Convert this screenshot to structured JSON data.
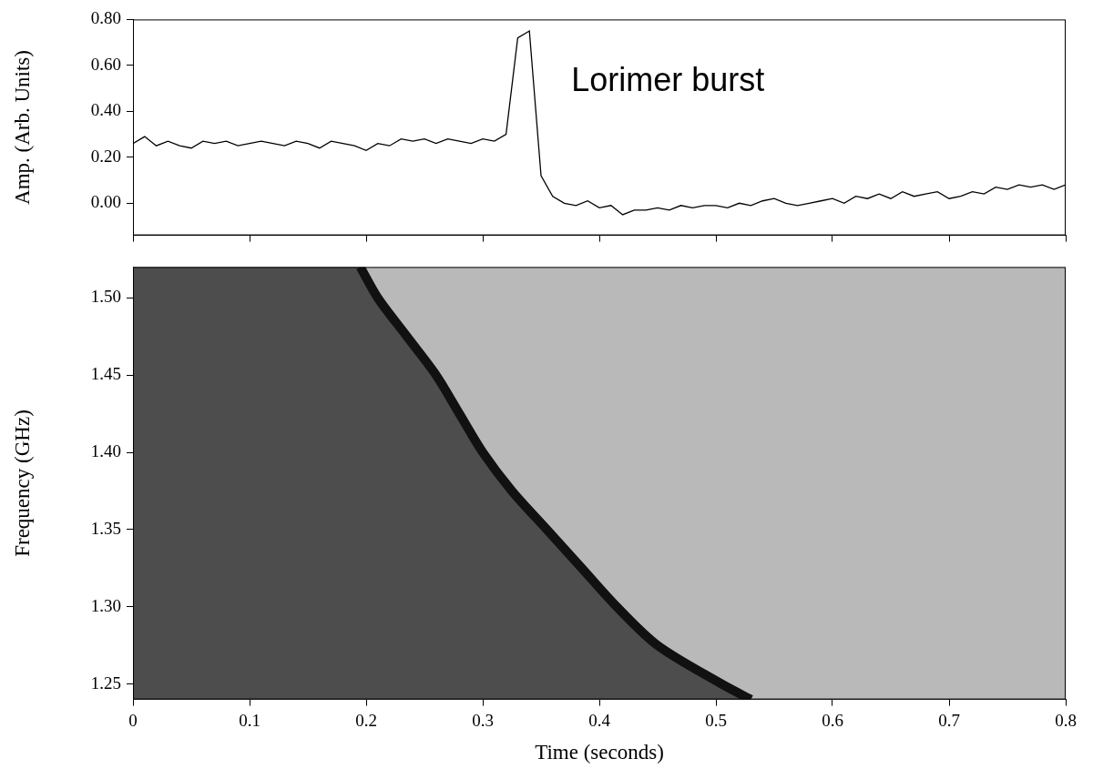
{
  "chart_data": [
    {
      "type": "line",
      "ylabel": "Amp. (Arb. Units)",
      "annotation": "Lorimer burst",
      "color": "#000000",
      "grid": false,
      "tick_labels": "y",
      "x": [
        0,
        0.01,
        0.02,
        0.03,
        0.04,
        0.05,
        0.06,
        0.07,
        0.08,
        0.09,
        0.1,
        0.11,
        0.12,
        0.13,
        0.14,
        0.15,
        0.16,
        0.17,
        0.18,
        0.19,
        0.2,
        0.21,
        0.22,
        0.23,
        0.24,
        0.25,
        0.26,
        0.27,
        0.28,
        0.29,
        0.3,
        0.31,
        0.32,
        0.33,
        0.34,
        0.35,
        0.36,
        0.37,
        0.38,
        0.39,
        0.4,
        0.41,
        0.42,
        0.43,
        0.44,
        0.45,
        0.46,
        0.47,
        0.48,
        0.49,
        0.5,
        0.51,
        0.52,
        0.53,
        0.54,
        0.55,
        0.56,
        0.57,
        0.58,
        0.59,
        0.6,
        0.61,
        0.62,
        0.63,
        0.64,
        0.65,
        0.66,
        0.67,
        0.68,
        0.69,
        0.7,
        0.71,
        0.72,
        0.73,
        0.74,
        0.75,
        0.76,
        0.77,
        0.78,
        0.79,
        0.8
      ],
      "values": [
        0.26,
        0.29,
        0.25,
        0.27,
        0.25,
        0.24,
        0.27,
        0.26,
        0.27,
        0.25,
        0.26,
        0.27,
        0.26,
        0.25,
        0.27,
        0.26,
        0.24,
        0.27,
        0.26,
        0.25,
        0.23,
        0.26,
        0.25,
        0.28,
        0.27,
        0.28,
        0.26,
        0.28,
        0.27,
        0.26,
        0.28,
        0.27,
        0.3,
        0.72,
        0.75,
        0.12,
        0.03,
        0.0,
        -0.01,
        0.01,
        -0.02,
        -0.01,
        -0.05,
        -0.03,
        -0.03,
        -0.02,
        -0.03,
        -0.01,
        -0.02,
        -0.01,
        -0.01,
        -0.02,
        0.0,
        -0.01,
        0.01,
        0.02,
        0.0,
        -0.01,
        0.0,
        0.01,
        0.02,
        0.0,
        0.03,
        0.02,
        0.04,
        0.02,
        0.05,
        0.03,
        0.04,
        0.05,
        0.02,
        0.03,
        0.05,
        0.04,
        0.07,
        0.06,
        0.08,
        0.07,
        0.08,
        0.06,
        0.08
      ],
      "xlim": [
        0,
        0.8
      ],
      "xticks": [
        0,
        0.1,
        0.2,
        0.3,
        0.4,
        0.5,
        0.6,
        0.7,
        0.8
      ],
      "ylim": [
        -0.14,
        0.8
      ],
      "yticks": [
        {
          "value": 0,
          "label": "0.00"
        },
        {
          "value": 0.2,
          "label": "0.20"
        },
        {
          "value": 0.4,
          "label": "0.40"
        },
        {
          "value": 0.6,
          "label": "0.60"
        },
        {
          "value": 0.8,
          "label": "0.80"
        }
      ]
    },
    {
      "type": "line",
      "xlabel": "Time (seconds)",
      "ylabel": "Frequency (GHz)",
      "color": "#111111",
      "grid": false,
      "x": [
        0.195,
        0.21,
        0.235,
        0.26,
        0.28,
        0.3,
        0.325,
        0.355,
        0.385,
        0.415,
        0.45,
        0.505,
        0.53
      ],
      "values": [
        1.52,
        1.5,
        1.475,
        1.45,
        1.425,
        1.4,
        1.375,
        1.35,
        1.325,
        1.3,
        1.275,
        1.25,
        1.24
      ],
      "xlim": [
        0,
        0.8
      ],
      "xticks": [
        0,
        0.1,
        0.2,
        0.3,
        0.4,
        0.5,
        0.6,
        0.7,
        0.8
      ],
      "ylim": [
        1.24,
        1.52
      ],
      "yticks": [
        {
          "value": 1.25,
          "label": "1.25"
        },
        {
          "value": 1.3,
          "label": "1.30"
        },
        {
          "value": 1.35,
          "label": "1.35"
        },
        {
          "value": 1.4,
          "label": "1.40"
        },
        {
          "value": 1.45,
          "label": "1.45"
        },
        {
          "value": 1.5,
          "label": "1.50"
        }
      ]
    }
  ]
}
